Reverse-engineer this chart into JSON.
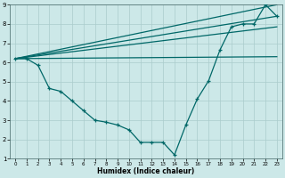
{
  "xlabel": "Humidex (Indice chaleur)",
  "background_color": "#cce8e8",
  "grid_color": "#aacccc",
  "line_color": "#006868",
  "xlim": [
    -0.5,
    23.5
  ],
  "ylim": [
    1,
    9
  ],
  "xticks": [
    0,
    1,
    2,
    3,
    4,
    5,
    6,
    7,
    8,
    9,
    10,
    11,
    12,
    13,
    14,
    15,
    16,
    17,
    18,
    19,
    20,
    21,
    22,
    23
  ],
  "yticks": [
    1,
    2,
    3,
    4,
    5,
    6,
    7,
    8,
    9
  ],
  "main_x": [
    0,
    1,
    2,
    3,
    4,
    5,
    6,
    7,
    8,
    9,
    10,
    11,
    12,
    13,
    14,
    15,
    16,
    17,
    18,
    19,
    20,
    21,
    22,
    23
  ],
  "main_y": [
    6.2,
    6.2,
    5.85,
    4.65,
    4.5,
    4.0,
    3.5,
    3.0,
    2.9,
    2.75,
    2.5,
    1.85,
    1.85,
    1.85,
    1.2,
    2.75,
    4.1,
    5.05,
    6.65,
    7.85,
    8.0,
    8.0,
    9.0,
    8.4
  ],
  "line2_x": [
    0,
    23
  ],
  "line2_y": [
    6.2,
    9.0
  ],
  "line3_x": [
    0,
    23
  ],
  "line3_y": [
    6.2,
    8.4
  ],
  "line4_x": [
    0,
    23
  ],
  "line4_y": [
    6.2,
    7.85
  ],
  "line5_x": [
    0,
    23
  ],
  "line5_y": [
    6.2,
    6.3
  ]
}
